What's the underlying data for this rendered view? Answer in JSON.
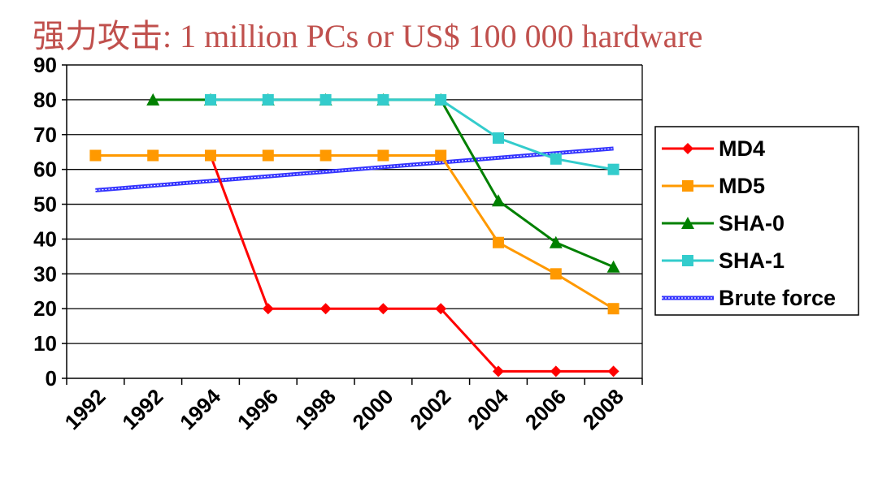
{
  "title": "强力攻击: 1 million PCs or US$ 100 000 hardware",
  "chart_data": {
    "type": "line",
    "title": "强力攻击: 1 million PCs or US$ 100 000 hardware",
    "xlabel": "",
    "ylabel": "",
    "categories": [
      "1992",
      "1992",
      "1994",
      "1996",
      "1998",
      "2000",
      "2002",
      "2004",
      "2006",
      "2008"
    ],
    "ylim": [
      0,
      90
    ],
    "yticks": [
      "0",
      "10",
      "20",
      "30",
      "40",
      "50",
      "60",
      "70",
      "80",
      "90"
    ],
    "grid": true,
    "legend_position": "right",
    "series": [
      {
        "name": "MD4",
        "color": "#ff0000",
        "marker": "diamond",
        "x": [
          1991,
          1993,
          1995,
          1997,
          1999,
          2001,
          2003,
          2005,
          2007,
          2009
        ],
        "values": [
          64,
          64,
          64,
          20,
          20,
          20,
          20,
          2,
          2,
          2
        ]
      },
      {
        "name": "MD5",
        "color": "#ff9900",
        "marker": "square",
        "x": [
          1991,
          1993,
          1995,
          1997,
          1999,
          2001,
          2003,
          2005,
          2007,
          2009
        ],
        "values": [
          64,
          64,
          64,
          64,
          64,
          64,
          64,
          39,
          30,
          20
        ]
      },
      {
        "name": "SHA-0",
        "color": "#008000",
        "marker": "triangle",
        "x": [
          1993,
          1995,
          1997,
          1999,
          2001,
          2003,
          2005,
          2007,
          2009
        ],
        "values": [
          80,
          80,
          80,
          80,
          80,
          80,
          51,
          39,
          32
        ]
      },
      {
        "name": "SHA-1",
        "color": "#33cccc",
        "marker": "square",
        "x": [
          1995,
          1997,
          1999,
          2001,
          2003,
          2005,
          2007,
          2009
        ],
        "values": [
          80,
          80,
          80,
          80,
          80,
          69,
          63,
          60
        ]
      },
      {
        "name": "Brute force",
        "color": "#3333ff",
        "marker": "none",
        "style": "hatched",
        "x": [
          1991,
          2009
        ],
        "values": [
          54,
          66
        ]
      }
    ]
  }
}
